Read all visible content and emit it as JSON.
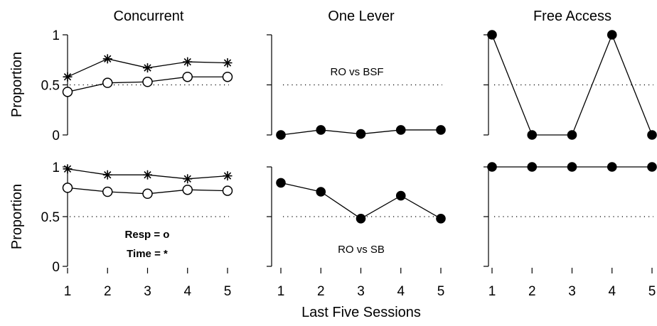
{
  "chart_data": [
    {
      "type": "line",
      "row": 0,
      "col": 0,
      "title": "Concurrent",
      "ylabel": "Proportion",
      "x": [
        1,
        2,
        3,
        4,
        5
      ],
      "ylim": [
        0,
        1
      ],
      "yticks": [
        "0",
        "0.5",
        "1"
      ],
      "reference_line": 0.5,
      "series": [
        {
          "marker": "star",
          "values": [
            0.58,
            0.76,
            0.67,
            0.73,
            0.72
          ]
        },
        {
          "marker": "open-circle",
          "values": [
            0.43,
            0.52,
            0.53,
            0.58,
            0.58
          ]
        }
      ],
      "annotations": []
    },
    {
      "type": "line",
      "row": 0,
      "col": 1,
      "title": "One Lever",
      "x": [
        1,
        2,
        3,
        4,
        5
      ],
      "ylim": [
        0,
        1
      ],
      "reference_line": 0.5,
      "series": [
        {
          "marker": "filled-circle",
          "values": [
            0.0,
            0.05,
            0.01,
            0.05,
            0.05
          ]
        }
      ],
      "annotations": [
        {
          "text": "RO vs BSF",
          "bold": false
        }
      ]
    },
    {
      "type": "line",
      "row": 0,
      "col": 2,
      "title": "Free Access",
      "x": [
        1,
        2,
        3,
        4,
        5
      ],
      "ylim": [
        0,
        1
      ],
      "reference_line": 0.5,
      "series": [
        {
          "marker": "filled-circle",
          "values": [
            1.0,
            0.0,
            0.0,
            1.0,
            0.0
          ]
        }
      ],
      "annotations": []
    },
    {
      "type": "line",
      "row": 1,
      "col": 0,
      "ylabel": "Proportion",
      "x": [
        1,
        2,
        3,
        4,
        5
      ],
      "xticks": [
        "1",
        "2",
        "3",
        "4",
        "5"
      ],
      "ylim": [
        0,
        1
      ],
      "yticks": [
        "0",
        "0.5",
        "1"
      ],
      "reference_line": 0.5,
      "series": [
        {
          "marker": "star",
          "values": [
            0.98,
            0.92,
            0.92,
            0.88,
            0.91
          ]
        },
        {
          "marker": "open-circle",
          "values": [
            0.79,
            0.75,
            0.73,
            0.77,
            0.76
          ]
        }
      ],
      "annotations": [
        {
          "text": "Resp = o",
          "bold": true
        },
        {
          "text": "Time = *",
          "bold": true
        }
      ]
    },
    {
      "type": "line",
      "row": 1,
      "col": 1,
      "x": [
        1,
        2,
        3,
        4,
        5
      ],
      "xticks": [
        "1",
        "2",
        "3",
        "4",
        "5"
      ],
      "xlabel": "Last Five Sessions",
      "ylim": [
        0,
        1
      ],
      "reference_line": 0.5,
      "series": [
        {
          "marker": "filled-circle",
          "values": [
            0.84,
            0.75,
            0.48,
            0.71,
            0.48
          ]
        }
      ],
      "annotations": [
        {
          "text": "RO vs SB",
          "bold": false
        }
      ]
    },
    {
      "type": "line",
      "row": 1,
      "col": 2,
      "x": [
        1,
        2,
        3,
        4,
        5
      ],
      "xticks": [
        "1",
        "2",
        "3",
        "4",
        "5"
      ],
      "ylim": [
        0,
        1
      ],
      "reference_line": 0.5,
      "series": [
        {
          "marker": "filled-circle",
          "values": [
            1.0,
            1.0,
            1.0,
            1.0,
            1.0
          ]
        }
      ],
      "annotations": []
    }
  ]
}
